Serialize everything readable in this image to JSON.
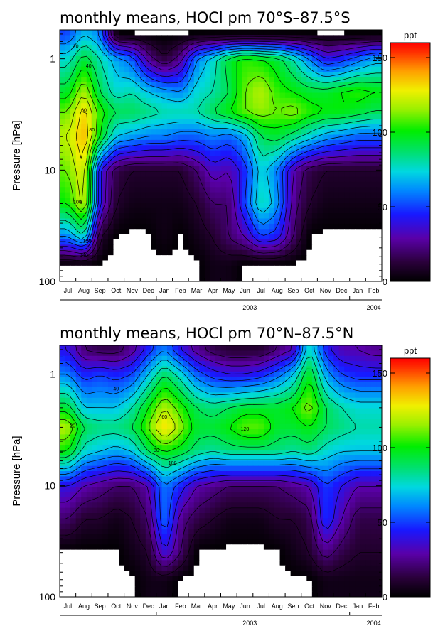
{
  "chart_data": [
    {
      "type": "heatmap",
      "title": "monthly means, HOCl pm 70°S–87.5°S",
      "ylabel": "Pressure [hPa]",
      "y_scale": "log",
      "y_range": [
        100,
        0.55
      ],
      "y_ticks": [
        "1",
        "10",
        "100"
      ],
      "months": [
        "Jul",
        "Aug",
        "Sep",
        "Oct",
        "Nov",
        "Dec",
        "Jan",
        "Feb",
        "Mar",
        "Apr",
        "May",
        "Jun",
        "Jul",
        "Aug",
        "Sep",
        "Oct",
        "Nov",
        "Dec",
        "Jan",
        "Feb"
      ],
      "years": [
        "2003",
        "2004"
      ],
      "colorbar": {
        "label": "ppt",
        "range": [
          0,
          160
        ],
        "ticks": [
          "0",
          "50",
          "100",
          "150"
        ]
      },
      "contour_labels": [
        "20",
        "40",
        "60",
        "80",
        "100",
        "120",
        "140"
      ],
      "value_field": {
        "pressure_hPa": [
          0.6,
          1,
          2,
          3,
          5,
          10,
          20,
          40,
          70
        ],
        "rows": [
          [
            50,
            70,
            60,
            0,
            0,
            0,
            0,
            0,
            0,
            0,
            0,
            0,
            0,
            0,
            0,
            0,
            0,
            0,
            0,
            0
          ],
          [
            75,
            95,
            80,
            65,
            55,
            25,
            10,
            25,
            60,
            75,
            95,
            105,
            100,
            95,
            80,
            60,
            40,
            45,
            55,
            65
          ],
          [
            95,
            120,
            90,
            75,
            80,
            70,
            65,
            60,
            75,
            80,
            90,
            110,
            120,
            105,
            100,
            95,
            95,
            100,
            105,
            100
          ],
          [
            110,
            135,
            105,
            90,
            90,
            85,
            80,
            80,
            80,
            90,
            100,
            110,
            115,
            110,
            115,
            105,
            100,
            100,
            95,
            90
          ],
          [
            120,
            140,
            100,
            70,
            65,
            60,
            60,
            55,
            55,
            60,
            55,
            65,
            90,
            95,
            85,
            75,
            65,
            60,
            55,
            55
          ],
          [
            110,
            130,
            40,
            15,
            10,
            10,
            10,
            10,
            20,
            35,
            30,
            45,
            75,
            60,
            30,
            15,
            10,
            10,
            10,
            10
          ],
          [
            100,
            125,
            40,
            10,
            5,
            5,
            5,
            5,
            10,
            20,
            20,
            50,
            80,
            65,
            25,
            10,
            5,
            5,
            5,
            5
          ],
          [
            60,
            80,
            10,
            0,
            0,
            0,
            5,
            0,
            5,
            10,
            20,
            30,
            50,
            45,
            20,
            0,
            0,
            0,
            0,
            0
          ],
          [
            0,
            0,
            0,
            0,
            0,
            0,
            0,
            0,
            0,
            5,
            5,
            0,
            0,
            0,
            0,
            0,
            0,
            0,
            0,
            0
          ]
        ]
      }
    },
    {
      "type": "heatmap",
      "title": "monthly means, HOCl pm 70°N–87.5°N",
      "ylabel": "Pressure [hPa]",
      "y_scale": "log",
      "y_range": [
        100,
        0.55
      ],
      "y_ticks": [
        "1",
        "10",
        "100"
      ],
      "months": [
        "Jul",
        "Aug",
        "Sep",
        "Oct",
        "Nov",
        "Dec",
        "Jan",
        "Feb",
        "Mar",
        "Apr",
        "May",
        "Jun",
        "Jul",
        "Aug",
        "Sep",
        "Oct",
        "Nov",
        "Dec",
        "Jan",
        "Feb"
      ],
      "years": [
        "2003",
        "2004"
      ],
      "colorbar": {
        "label": "ppt",
        "range": [
          0,
          160
        ],
        "ticks": [
          "0",
          "50",
          "100",
          "150"
        ]
      },
      "contour_labels": [
        "20",
        "40",
        "60",
        "80",
        "100",
        "120"
      ],
      "value_field": {
        "pressure_hPa": [
          0.6,
          1,
          2,
          3,
          5,
          10,
          20,
          40,
          70
        ],
        "rows": [
          [
            40,
            20,
            15,
            15,
            25,
            45,
            60,
            40,
            25,
            15,
            10,
            10,
            10,
            20,
            30,
            80,
            45,
            30,
            30,
            25
          ],
          [
            60,
            45,
            50,
            45,
            50,
            70,
            90,
            75,
            55,
            45,
            40,
            40,
            45,
            55,
            70,
            100,
            65,
            50,
            45,
            45
          ],
          [
            95,
            70,
            70,
            70,
            80,
            100,
            120,
            105,
            90,
            85,
            90,
            95,
            95,
            95,
            100,
            115,
            90,
            80,
            75,
            75
          ],
          [
            120,
            90,
            85,
            85,
            90,
            110,
            135,
            115,
            95,
            95,
            100,
            110,
            110,
            95,
            95,
            100,
            90,
            85,
            80,
            80
          ],
          [
            100,
            75,
            70,
            65,
            70,
            90,
            100,
            95,
            85,
            80,
            85,
            85,
            85,
            85,
            80,
            85,
            75,
            70,
            70,
            70
          ],
          [
            40,
            30,
            25,
            20,
            20,
            30,
            60,
            45,
            30,
            25,
            20,
            20,
            20,
            20,
            25,
            30,
            50,
            40,
            30,
            30
          ],
          [
            20,
            10,
            10,
            5,
            10,
            20,
            60,
            25,
            15,
            10,
            5,
            5,
            5,
            10,
            10,
            15,
            50,
            30,
            15,
            15
          ],
          [
            0,
            0,
            0,
            0,
            5,
            10,
            40,
            20,
            0,
            0,
            0,
            0,
            0,
            0,
            5,
            10,
            25,
            15,
            10,
            10
          ],
          [
            0,
            0,
            0,
            0,
            0,
            5,
            5,
            0,
            0,
            0,
            0,
            0,
            0,
            0,
            0,
            0,
            5,
            5,
            5,
            5
          ]
        ]
      }
    }
  ]
}
